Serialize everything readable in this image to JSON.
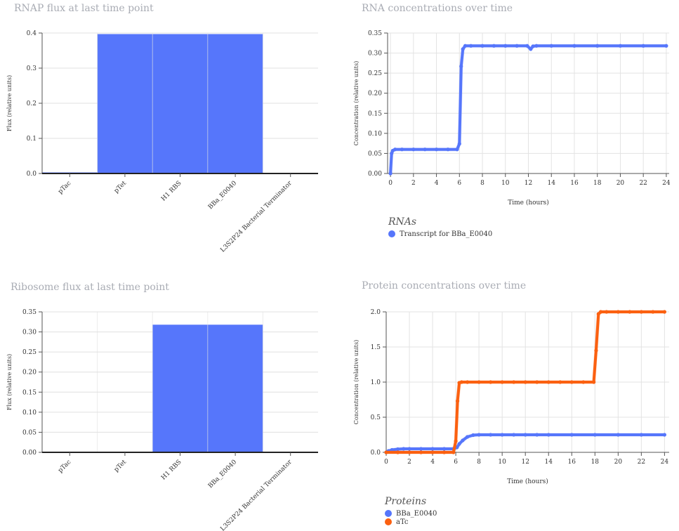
{
  "panels": {
    "rnap": {
      "title": "RNAP flux at last time point"
    },
    "rna": {
      "title": "RNA concentrations over time"
    },
    "ribo": {
      "title": "Ribosome flux at last time point"
    },
    "protein": {
      "title": "Protein concentrations over time"
    }
  },
  "legends": {
    "rna": {
      "title": "RNAs",
      "items": [
        {
          "label": "Transcript for BBa_E0040",
          "color": "#5676fb"
        }
      ]
    },
    "protein": {
      "title": "Proteins",
      "items": [
        {
          "label": "BBa_E0040",
          "color": "#5676fb"
        },
        {
          "label": "aTc",
          "color": "#fb6010"
        }
      ]
    }
  },
  "chart_data": [
    {
      "id": "rnap",
      "type": "bar",
      "title": "RNAP flux at last time point",
      "xlabel": "",
      "ylabel": "Flux (relative units)",
      "categories": [
        "pTac",
        "pTet",
        "H1 RBS",
        "BBa_E0040",
        "L3S2P24 Bacterial Terminator"
      ],
      "values": [
        0.003,
        0.397,
        0.397,
        0.397,
        0.0
      ],
      "ylim": [
        0,
        0.4
      ],
      "yticks": [
        "0.0",
        "0.1",
        "0.2",
        "0.3",
        "0.4"
      ],
      "color": "#5676fb",
      "grid": true
    },
    {
      "id": "rna",
      "type": "scatter",
      "title": "RNA concentrations over time",
      "xlabel": "Time (hours)",
      "ylabel": "Concentration (relative units)",
      "xlim": [
        -0.25,
        24.25
      ],
      "ylim": [
        0,
        0.35
      ],
      "xticks": [
        "0",
        "2",
        "4",
        "6",
        "8",
        "10",
        "12",
        "14",
        "16",
        "18",
        "20",
        "22",
        "24"
      ],
      "yticks": [
        "0.00",
        "0.05",
        "0.10",
        "0.15",
        "0.20",
        "0.25",
        "0.30",
        "0.35"
      ],
      "grid": true,
      "series": [
        {
          "name": "Transcript for BBa_E0040",
          "color": "#5676fb",
          "points": [
            [
              0,
              0
            ],
            [
              0.1,
              0.05
            ],
            [
              0.2,
              0.057
            ],
            [
              0.4,
              0.06
            ],
            [
              1,
              0.06
            ],
            [
              2,
              0.06
            ],
            [
              3,
              0.06
            ],
            [
              4,
              0.06
            ],
            [
              5,
              0.06
            ],
            [
              5.8,
              0.06
            ],
            [
              6,
              0.074
            ],
            [
              6.15,
              0.267
            ],
            [
              6.3,
              0.31
            ],
            [
              6.5,
              0.318
            ],
            [
              7,
              0.318
            ],
            [
              8,
              0.318
            ],
            [
              9,
              0.318
            ],
            [
              10,
              0.318
            ],
            [
              11,
              0.318
            ],
            [
              11.9,
              0.318
            ],
            [
              12.2,
              0.31
            ],
            [
              12.4,
              0.317
            ],
            [
              12.7,
              0.318
            ],
            [
              14,
              0.318
            ],
            [
              16,
              0.318
            ],
            [
              18,
              0.318
            ],
            [
              20,
              0.318
            ],
            [
              22,
              0.318
            ],
            [
              24,
              0.318
            ]
          ]
        }
      ]
    },
    {
      "id": "ribo",
      "type": "bar",
      "title": "Ribosome flux at last time point",
      "xlabel": "",
      "ylabel": "Flux (relative units)",
      "categories": [
        "pTac",
        "pTet",
        "H1 RBS",
        "BBa_E0040",
        "L3S2P24 Bacterial Terminator"
      ],
      "values": [
        0.0,
        0.0,
        0.318,
        0.318,
        0.0
      ],
      "ylim": [
        0,
        0.35
      ],
      "yticks": [
        "0.00",
        "0.05",
        "0.10",
        "0.15",
        "0.20",
        "0.25",
        "0.30",
        "0.35"
      ],
      "color": "#5676fb",
      "grid": true
    },
    {
      "id": "protein",
      "type": "scatter",
      "title": "Protein concentrations over time",
      "xlabel": "Time (hours)",
      "ylabel": "Concentration (relative units)",
      "xlim": [
        0,
        24.4
      ],
      "ylim": [
        0,
        2.0
      ],
      "xticks": [
        "0",
        "2",
        "4",
        "6",
        "8",
        "10",
        "12",
        "14",
        "16",
        "18",
        "20",
        "22",
        "24"
      ],
      "yticks": [
        "0.0",
        "0.5",
        "1.0",
        "1.5",
        "2.0"
      ],
      "grid": true,
      "series": [
        {
          "name": "BBa_E0040",
          "color": "#5676fb",
          "points": [
            [
              0,
              0
            ],
            [
              0.2,
              0.02
            ],
            [
              0.5,
              0.035
            ],
            [
              1,
              0.045
            ],
            [
              1.5,
              0.05
            ],
            [
              2,
              0.05
            ],
            [
              3,
              0.05
            ],
            [
              4,
              0.05
            ],
            [
              5,
              0.05
            ],
            [
              5.8,
              0.05
            ],
            [
              6.1,
              0.07
            ],
            [
              6.3,
              0.12
            ],
            [
              6.6,
              0.17
            ],
            [
              7,
              0.22
            ],
            [
              7.5,
              0.245
            ],
            [
              8,
              0.25
            ],
            [
              9,
              0.25
            ],
            [
              10,
              0.25
            ],
            [
              11,
              0.25
            ],
            [
              12,
              0.25
            ],
            [
              13,
              0.25
            ],
            [
              14,
              0.25
            ],
            [
              16,
              0.25
            ],
            [
              18,
              0.25
            ],
            [
              20,
              0.25
            ],
            [
              22,
              0.25
            ],
            [
              24,
              0.25
            ]
          ]
        },
        {
          "name": "aTc",
          "color": "#fb6010",
          "points": [
            [
              0,
              0
            ],
            [
              1,
              0
            ],
            [
              2,
              0
            ],
            [
              3,
              0
            ],
            [
              4,
              0
            ],
            [
              5,
              0
            ],
            [
              5.8,
              0
            ],
            [
              6,
              0.16
            ],
            [
              6.15,
              0.73
            ],
            [
              6.3,
              0.99
            ],
            [
              6.5,
              1.0
            ],
            [
              7,
              1.0
            ],
            [
              8,
              1.0
            ],
            [
              9,
              1.0
            ],
            [
              10,
              1.0
            ],
            [
              11,
              1.0
            ],
            [
              12,
              1.0
            ],
            [
              13,
              1.0
            ],
            [
              14,
              1.0
            ],
            [
              15,
              1.0
            ],
            [
              16,
              1.0
            ],
            [
              17,
              1.0
            ],
            [
              17.9,
              1.0
            ],
            [
              18.1,
              1.45
            ],
            [
              18.3,
              1.97
            ],
            [
              18.5,
              2.0
            ],
            [
              19,
              2.0
            ],
            [
              20,
              2.0
            ],
            [
              21,
              2.0
            ],
            [
              22,
              2.0
            ],
            [
              23,
              2.0
            ],
            [
              24,
              2.0
            ]
          ]
        }
      ]
    }
  ]
}
